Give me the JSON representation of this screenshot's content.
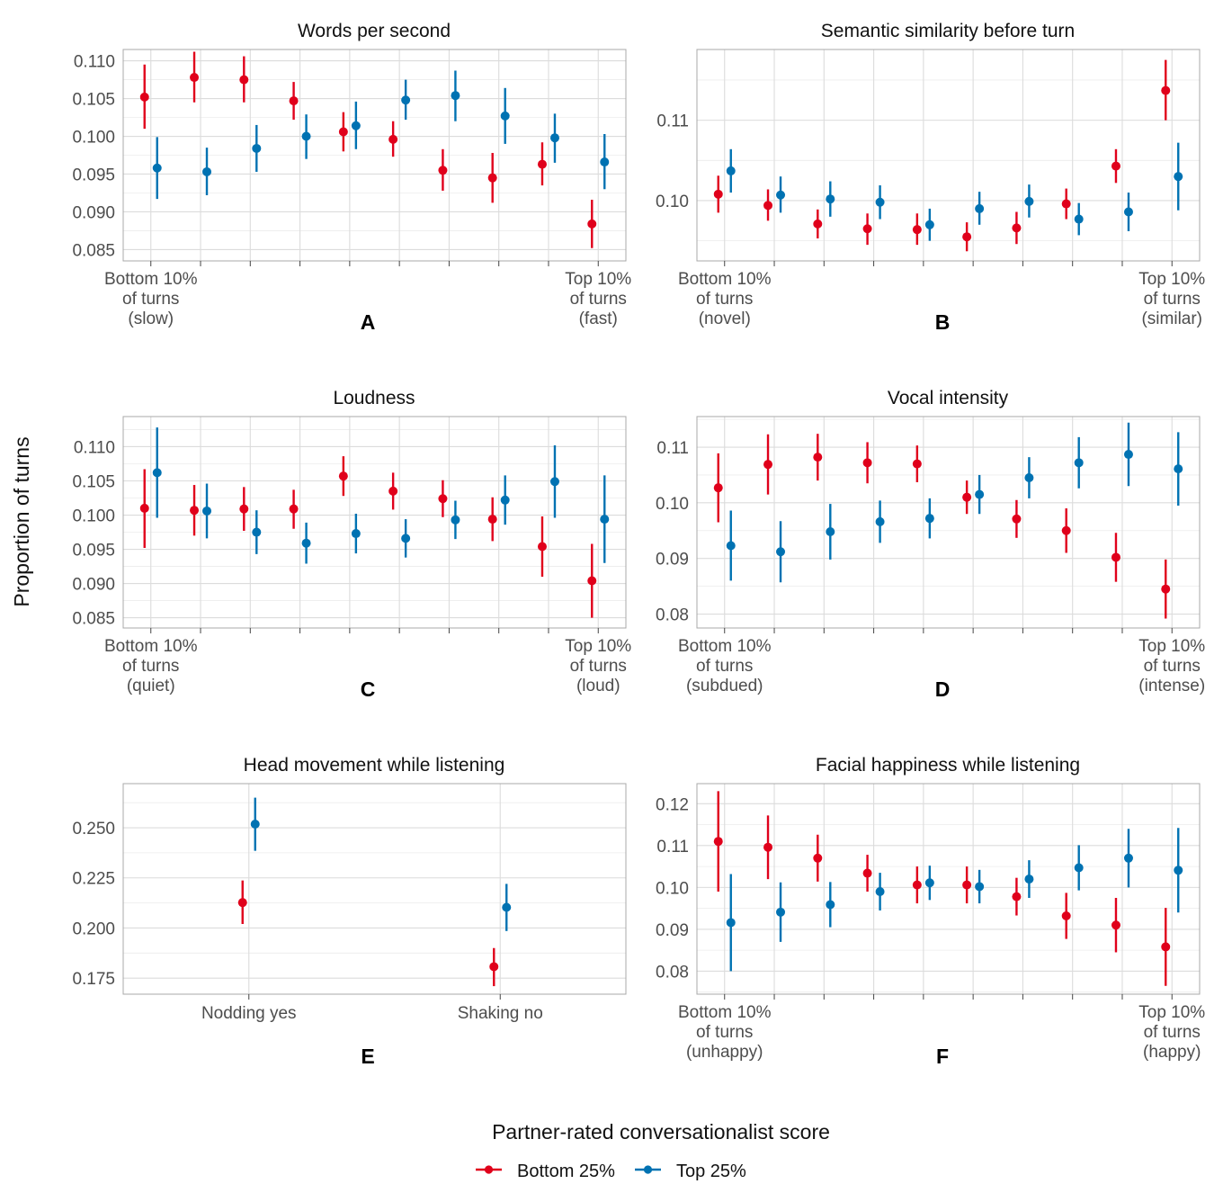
{
  "ylabel": "Proportion of turns",
  "legend": {
    "title": "Partner-rated conversationalist score",
    "items": [
      {
        "label": "Bottom 25%",
        "color": "#e0001b"
      },
      {
        "label": "Top 25%",
        "color": "#0072b2"
      }
    ]
  },
  "chart_data": [
    {
      "type": "scatter",
      "letter": "A",
      "title": "Words per second",
      "x_label_left": [
        "Bottom 10%",
        "of turns",
        "(slow)"
      ],
      "x_label_right": [
        "Top 10%",
        "of turns",
        "(fast)"
      ],
      "x": [
        1,
        2,
        3,
        4,
        5,
        6,
        7,
        8,
        9,
        10
      ],
      "ylim": [
        0.0835,
        0.1115
      ],
      "yticks": [
        0.085,
        0.09,
        0.095,
        0.1,
        0.105,
        0.11
      ],
      "ytick_labels": [
        "0.085",
        "0.090",
        "0.095",
        "0.100",
        "0.105",
        "0.110"
      ],
      "series": [
        {
          "name": "Bottom 25%",
          "values": [
            0.1052,
            0.1078,
            0.1075,
            0.1047,
            0.1006,
            0.0996,
            0.0955,
            0.0945,
            0.0963,
            0.0884
          ],
          "lower": [
            0.101,
            0.1045,
            0.1045,
            0.1022,
            0.098,
            0.0973,
            0.0928,
            0.0912,
            0.0935,
            0.0852
          ],
          "upper": [
            0.1095,
            0.1112,
            0.1106,
            0.1072,
            0.1032,
            0.102,
            0.0983,
            0.0978,
            0.0992,
            0.0916
          ]
        },
        {
          "name": "Top 25%",
          "values": [
            0.0958,
            0.0953,
            0.0984,
            0.1,
            0.1014,
            0.1048,
            0.1054,
            0.1027,
            0.0998,
            0.0966
          ],
          "lower": [
            0.0917,
            0.0922,
            0.0953,
            0.097,
            0.0983,
            0.1022,
            0.102,
            0.099,
            0.0965,
            0.093
          ],
          "upper": [
            0.0999,
            0.0985,
            0.1015,
            0.1029,
            0.1046,
            0.1075,
            0.1087,
            0.1064,
            0.103,
            0.1003
          ]
        }
      ]
    },
    {
      "type": "scatter",
      "letter": "B",
      "title": "Semantic similarity before turn",
      "x_label_left": [
        "Bottom 10%",
        "of turns",
        "(novel)"
      ],
      "x_label_right": [
        "Top 10%",
        "of turns",
        "(similar)"
      ],
      "x": [
        1,
        2,
        3,
        4,
        5,
        6,
        7,
        8,
        9,
        10
      ],
      "ylim": [
        0.0925,
        0.1188
      ],
      "yticks": [
        0.1,
        0.11
      ],
      "ytick_labels": [
        "0.10",
        "0.11"
      ],
      "series": [
        {
          "name": "Bottom 25%",
          "values": [
            0.1008,
            0.0994,
            0.0971,
            0.0965,
            0.0964,
            0.0955,
            0.0966,
            0.0996,
            0.1043,
            0.1137
          ],
          "lower": [
            0.0985,
            0.0975,
            0.0953,
            0.0945,
            0.0945,
            0.0937,
            0.0946,
            0.0977,
            0.1022,
            0.11
          ],
          "upper": [
            0.1031,
            0.1014,
            0.0989,
            0.0984,
            0.0984,
            0.0973,
            0.0986,
            0.1015,
            0.1064,
            0.1175
          ]
        },
        {
          "name": "Top 25%",
          "values": [
            0.1037,
            0.1007,
            0.1002,
            0.0998,
            0.097,
            0.099,
            0.0999,
            0.0977,
            0.0986,
            0.103
          ],
          "lower": [
            0.101,
            0.0985,
            0.098,
            0.0977,
            0.095,
            0.097,
            0.0979,
            0.0957,
            0.0962,
            0.0988
          ],
          "upper": [
            0.1064,
            0.103,
            0.1024,
            0.1019,
            0.099,
            0.1011,
            0.102,
            0.0997,
            0.101,
            0.1072
          ]
        }
      ]
    },
    {
      "type": "scatter",
      "letter": "C",
      "title": "Loudness",
      "x_label_left": [
        "Bottom 10%",
        "of turns",
        "(quiet)"
      ],
      "x_label_right": [
        "Top 10%",
        "of turns",
        "(loud)"
      ],
      "x": [
        1,
        2,
        3,
        4,
        5,
        6,
        7,
        8,
        9,
        10
      ],
      "ylim": [
        0.0835,
        0.1144
      ],
      "yticks": [
        0.085,
        0.09,
        0.095,
        0.1,
        0.105,
        0.11
      ],
      "ytick_labels": [
        "0.085",
        "0.090",
        "0.095",
        "0.100",
        "0.105",
        "0.110"
      ],
      "series": [
        {
          "name": "Bottom 25%",
          "values": [
            0.101,
            0.1007,
            0.1009,
            0.1009,
            0.1057,
            0.1035,
            0.1024,
            0.0994,
            0.0954,
            0.0904
          ],
          "lower": [
            0.0952,
            0.097,
            0.0977,
            0.098,
            0.1028,
            0.1008,
            0.0997,
            0.0962,
            0.091,
            0.085
          ],
          "upper": [
            0.1067,
            0.1044,
            0.1041,
            0.1037,
            0.1086,
            0.1062,
            0.1051,
            0.1026,
            0.0998,
            0.0958
          ]
        },
        {
          "name": "Top 25%",
          "values": [
            0.1062,
            0.1006,
            0.0975,
            0.0959,
            0.0973,
            0.0966,
            0.0993,
            0.1022,
            0.1049,
            0.0994
          ],
          "lower": [
            0.0996,
            0.0966,
            0.0943,
            0.0929,
            0.0944,
            0.0938,
            0.0965,
            0.0986,
            0.0996,
            0.093
          ],
          "upper": [
            0.1128,
            0.1046,
            0.1007,
            0.0989,
            0.1002,
            0.0994,
            0.1021,
            0.1058,
            0.1102,
            0.1058
          ]
        }
      ]
    },
    {
      "type": "scatter",
      "letter": "D",
      "title": "Vocal intensity",
      "x_label_left": [
        "Bottom 10%",
        "of turns",
        "(subdued)"
      ],
      "x_label_right": [
        "Top 10%",
        "of turns",
        "(intense)"
      ],
      "x": [
        1,
        2,
        3,
        4,
        5,
        6,
        7,
        8,
        9,
        10
      ],
      "ylim": [
        0.0775,
        0.1155
      ],
      "yticks": [
        0.08,
        0.09,
        0.1,
        0.11
      ],
      "ytick_labels": [
        "0.08",
        "0.09",
        "0.10",
        "0.11"
      ],
      "series": [
        {
          "name": "Bottom 25%",
          "values": [
            0.1027,
            0.1069,
            0.1082,
            0.1072,
            0.107,
            0.101,
            0.0971,
            0.095,
            0.0902,
            0.0845
          ],
          "lower": [
            0.0965,
            0.1015,
            0.104,
            0.1035,
            0.1037,
            0.098,
            0.0937,
            0.091,
            0.0858,
            0.0792
          ],
          "upper": [
            0.1089,
            0.1123,
            0.1124,
            0.1109,
            0.1103,
            0.104,
            0.1005,
            0.099,
            0.0946,
            0.0898
          ]
        },
        {
          "name": "Top 25%",
          "values": [
            0.0923,
            0.0912,
            0.0948,
            0.0966,
            0.0972,
            0.1015,
            0.1045,
            0.1072,
            0.1087,
            0.1061
          ],
          "lower": [
            0.086,
            0.0857,
            0.0898,
            0.0928,
            0.0936,
            0.098,
            0.1008,
            0.1026,
            0.103,
            0.0995
          ],
          "upper": [
            0.0986,
            0.0967,
            0.0998,
            0.1004,
            0.1008,
            0.105,
            0.1082,
            0.1118,
            0.1144,
            0.1127
          ]
        }
      ]
    },
    {
      "type": "scatter",
      "letter": "E",
      "title": "Head movement while listening",
      "categories": [
        "Nodding yes",
        "Shaking no"
      ],
      "ylim": [
        0.167,
        0.272
      ],
      "yticks": [
        0.175,
        0.2,
        0.225,
        0.25
      ],
      "ytick_labels": [
        "0.175",
        "0.200",
        "0.225",
        "0.250"
      ],
      "series": [
        {
          "name": "Bottom 25%",
          "values": [
            0.2127,
            0.1807
          ],
          "lower": [
            0.202,
            0.171
          ],
          "upper": [
            0.2237,
            0.19
          ]
        },
        {
          "name": "Top 25%",
          "values": [
            0.2518,
            0.2103
          ],
          "lower": [
            0.2385,
            0.1985
          ],
          "upper": [
            0.265,
            0.222
          ]
        }
      ]
    },
    {
      "type": "scatter",
      "letter": "F",
      "title": "Facial happiness while listening",
      "x_label_left": [
        "Bottom 10%",
        "of turns",
        "(unhappy)"
      ],
      "x_label_right": [
        "Top 10%",
        "of turns",
        "(happy)"
      ],
      "x": [
        1,
        2,
        3,
        4,
        5,
        6,
        7,
        8,
        9,
        10
      ],
      "ylim": [
        0.0745,
        0.1248
      ],
      "yticks": [
        0.08,
        0.09,
        0.1,
        0.11,
        0.12
      ],
      "ytick_labels": [
        "0.08",
        "0.09",
        "0.10",
        "0.11",
        "0.12"
      ],
      "series": [
        {
          "name": "Bottom 25%",
          "values": [
            0.111,
            0.1096,
            0.107,
            0.1034,
            0.1006,
            0.1006,
            0.0978,
            0.0932,
            0.091,
            0.0858
          ],
          "lower": [
            0.099,
            0.102,
            0.1014,
            0.099,
            0.0962,
            0.0962,
            0.0933,
            0.0877,
            0.0845,
            0.0765
          ],
          "upper": [
            0.123,
            0.1172,
            0.1126,
            0.1078,
            0.105,
            0.105,
            0.1023,
            0.0987,
            0.0975,
            0.0951
          ]
        },
        {
          "name": "Top 25%",
          "values": [
            0.0916,
            0.0941,
            0.0959,
            0.099,
            0.1011,
            0.1002,
            0.102,
            0.1047,
            0.107,
            0.1041
          ],
          "lower": [
            0.08,
            0.087,
            0.0905,
            0.0945,
            0.097,
            0.0962,
            0.0975,
            0.0993,
            0.1,
            0.094
          ],
          "upper": [
            0.1032,
            0.1012,
            0.1013,
            0.1035,
            0.1052,
            0.1042,
            0.1065,
            0.1101,
            0.114,
            0.1142
          ]
        }
      ]
    }
  ]
}
